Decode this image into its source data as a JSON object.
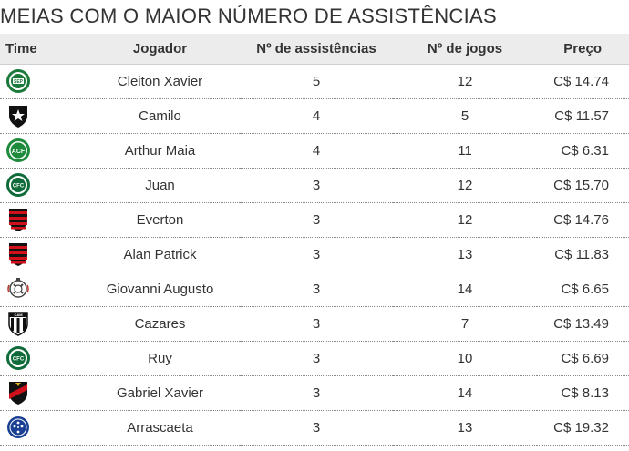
{
  "title": "MEIAS COM O MAIOR NÚMERO DE ASSISTÊNCIAS",
  "columns": {
    "time": "Time",
    "jogador": "Jogador",
    "assistencias": "Nº de assistências",
    "jogos": "Nº de jogos",
    "preco": "Preço"
  },
  "rows": [
    {
      "crest": "palmeiras-crest-icon",
      "player": "Cleiton Xavier",
      "assists": "5",
      "games": "12",
      "price": "C$ 14.74"
    },
    {
      "crest": "botafogo-crest-icon",
      "player": "Camilo",
      "assists": "4",
      "games": "5",
      "price": "C$ 11.57"
    },
    {
      "crest": "chapecoense-crest-icon",
      "player": "Arthur Maia",
      "assists": "4",
      "games": "11",
      "price": "C$ 6.31"
    },
    {
      "crest": "coritiba-crest-icon",
      "player": "Juan",
      "assists": "3",
      "games": "12",
      "price": "C$ 15.70"
    },
    {
      "crest": "flamengo-crest-icon",
      "player": "Everton",
      "assists": "3",
      "games": "12",
      "price": "C$ 14.76"
    },
    {
      "crest": "flamengo-crest-icon",
      "player": "Alan Patrick",
      "assists": "3",
      "games": "13",
      "price": "C$ 11.83"
    },
    {
      "crest": "corinthians-crest-icon",
      "player": "Giovanni Augusto",
      "assists": "3",
      "games": "14",
      "price": "C$ 6.65"
    },
    {
      "crest": "atletico-mg-crest-icon",
      "player": "Cazares",
      "assists": "3",
      "games": "7",
      "price": "C$ 13.49"
    },
    {
      "crest": "coritiba-crest-icon",
      "player": "Ruy",
      "assists": "3",
      "games": "10",
      "price": "C$ 6.69"
    },
    {
      "crest": "sport-crest-icon",
      "player": "Gabriel Xavier",
      "assists": "3",
      "games": "14",
      "price": "C$ 8.13"
    },
    {
      "crest": "cruzeiro-crest-icon",
      "player": "Arrascaeta",
      "assists": "3",
      "games": "13",
      "price": "C$ 19.32"
    }
  ]
}
